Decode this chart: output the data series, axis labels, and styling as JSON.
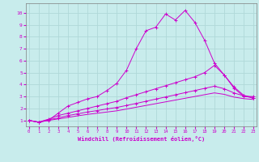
{
  "title": "",
  "xlabel": "Windchill (Refroidissement éolien,°C)",
  "ylabel": "",
  "background_color": "#c8ecec",
  "grid_color": "#b0d8d8",
  "line_color": "#cc00cc",
  "x_ticks": [
    0,
    1,
    2,
    3,
    4,
    5,
    6,
    7,
    8,
    9,
    10,
    11,
    12,
    13,
    14,
    15,
    16,
    17,
    18,
    19,
    20,
    21,
    22,
    23
  ],
  "y_ticks": [
    1,
    2,
    3,
    4,
    5,
    6,
    7,
    8,
    9,
    10
  ],
  "xlim": [
    -0.3,
    23.3
  ],
  "ylim": [
    0.5,
    10.8
  ],
  "lines": [
    {
      "x": [
        0,
        1,
        2,
        3,
        4,
        5,
        6,
        7,
        8,
        9,
        10,
        11,
        12,
        13,
        14,
        15,
        16,
        17,
        18,
        19,
        20,
        21,
        22,
        23
      ],
      "y": [
        1.0,
        0.85,
        1.0,
        1.6,
        2.2,
        2.5,
        2.8,
        3.0,
        3.5,
        4.1,
        5.2,
        7.0,
        8.5,
        8.8,
        9.9,
        9.4,
        10.2,
        9.2,
        7.7,
        5.8,
        4.8,
        3.7,
        3.0,
        3.0
      ],
      "marker": "+"
    },
    {
      "x": [
        0,
        1,
        2,
        3,
        4,
        5,
        6,
        7,
        8,
        9,
        10,
        11,
        12,
        13,
        14,
        15,
        16,
        17,
        18,
        19,
        20,
        21,
        22,
        23
      ],
      "y": [
        1.0,
        0.85,
        1.1,
        1.4,
        1.6,
        1.8,
        2.0,
        2.2,
        2.4,
        2.6,
        2.9,
        3.15,
        3.4,
        3.65,
        3.9,
        4.15,
        4.4,
        4.65,
        5.0,
        5.6,
        4.8,
        3.8,
        3.1,
        2.9
      ],
      "marker": "+"
    },
    {
      "x": [
        0,
        1,
        2,
        3,
        4,
        5,
        6,
        7,
        8,
        9,
        10,
        11,
        12,
        13,
        14,
        15,
        16,
        17,
        18,
        19,
        20,
        21,
        22,
        23
      ],
      "y": [
        1.0,
        0.85,
        1.05,
        1.2,
        1.4,
        1.55,
        1.7,
        1.82,
        1.96,
        2.08,
        2.25,
        2.42,
        2.6,
        2.78,
        2.96,
        3.14,
        3.32,
        3.5,
        3.68,
        3.86,
        3.65,
        3.3,
        3.05,
        2.85
      ],
      "marker": "+"
    },
    {
      "x": [
        0,
        1,
        2,
        3,
        4,
        5,
        6,
        7,
        8,
        9,
        10,
        11,
        12,
        13,
        14,
        15,
        16,
        17,
        18,
        19,
        20,
        21,
        22,
        23
      ],
      "y": [
        1.0,
        0.85,
        1.0,
        1.12,
        1.25,
        1.38,
        1.5,
        1.6,
        1.7,
        1.8,
        1.95,
        2.1,
        2.25,
        2.4,
        2.55,
        2.7,
        2.85,
        3.0,
        3.15,
        3.3,
        3.18,
        2.95,
        2.82,
        2.75
      ],
      "marker": null
    }
  ]
}
